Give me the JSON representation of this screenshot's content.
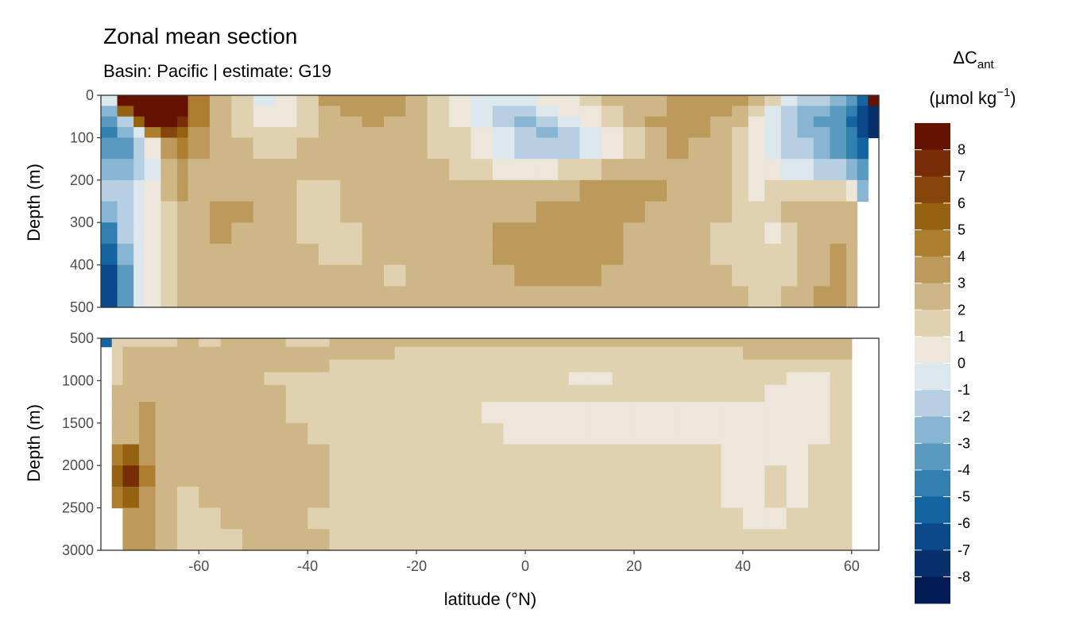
{
  "title": "Zonal mean section",
  "subtitle": "Basin: Pacific | estimate: G19",
  "chart_data": {
    "type": "heatmap",
    "title": "Zonal mean section",
    "subtitle": "Basin: Pacific | estimate: G19",
    "xlabel": "latitude (°N)",
    "ylabel": "Depth (m)",
    "xlim": [
      -78,
      65
    ],
    "x_ticks": [
      -60,
      -40,
      -20,
      0,
      20,
      40,
      60
    ],
    "x_tick_labels": [
      "-60",
      "-40",
      "-20",
      "0",
      "20",
      "40",
      "60"
    ],
    "legend": {
      "title": "ΔC",
      "title_subscript": "ant",
      "unit_prefix": "(µmol kg",
      "unit_superscript": "−1",
      "unit_suffix": ")",
      "placement": "right",
      "levels": [
        8,
        7,
        6,
        5,
        4,
        3,
        2,
        1,
        0,
        -1,
        -2,
        -3,
        -4,
        -5,
        -6,
        -7,
        -8
      ],
      "level_labels": [
        "8",
        "7",
        "6",
        "5",
        "4",
        "3",
        "2",
        "1",
        "0",
        "-1",
        "-2",
        "-3",
        "-4",
        "-5",
        "-6",
        "-7",
        "-8"
      ],
      "colors": [
        "#661200",
        "#772e06",
        "#86450a",
        "#95620f",
        "#ad7e2f",
        "#bc9a5b",
        "#cfb687",
        "#e0d2b1",
        "#ece6db",
        "#dce8ee",
        "#b6d0e1",
        "#88b6d2",
        "#5b9ac0",
        "#3180b0",
        "#1464a2",
        "#0a4889",
        "#062f6c",
        "#031b54"
      ]
    },
    "panels": [
      {
        "name": "upper",
        "ylim": [
          0,
          500
        ],
        "y_ticks": [
          0,
          100,
          200,
          300,
          400,
          500
        ],
        "y_tick_labels": [
          "0",
          "100",
          "200",
          "300",
          "400",
          "500"
        ],
        "lat_breaks": [
          -78,
          -75,
          -72,
          -70,
          -67,
          -64,
          -62,
          -58,
          -54,
          -50,
          -46,
          -42,
          -38,
          -34,
          -30,
          -26,
          -22,
          -18,
          -14,
          -10,
          -6,
          -2,
          2,
          6,
          10,
          14,
          18,
          22,
          26,
          30,
          34,
          38,
          41,
          44,
          47,
          50,
          53,
          56,
          59,
          61,
          63,
          65
        ],
        "depth_breaks": [
          0,
          25,
          50,
          75,
          100,
          150,
          200,
          250,
          300,
          350,
          400,
          450,
          500
        ],
        "values": [
          [
            -1,
            8,
            8,
            8,
            8,
            8,
            4,
            2,
            1,
            -1,
            0,
            1,
            3,
            3,
            3,
            3,
            2,
            1,
            0,
            -1,
            -1,
            -1,
            0,
            0,
            1,
            2,
            2,
            2,
            3,
            3,
            3,
            3,
            2,
            1,
            -1,
            -2,
            -2,
            -3,
            -4,
            -6,
            8
          ],
          [
            -3,
            5,
            8,
            8,
            8,
            8,
            4,
            2,
            1,
            0,
            0,
            1,
            2,
            3,
            3,
            3,
            2,
            1,
            0,
            -1,
            -2,
            -2,
            -1,
            0,
            0,
            1,
            2,
            2,
            3,
            3,
            3,
            2,
            1,
            -1,
            -2,
            -3,
            -3,
            -4,
            -5,
            -7,
            -8
          ],
          [
            -4,
            -2,
            5,
            8,
            8,
            7,
            4,
            2,
            1,
            0,
            0,
            1,
            2,
            2,
            3,
            2,
            2,
            1,
            0,
            -1,
            -2,
            -3,
            -2,
            -1,
            0,
            1,
            2,
            3,
            3,
            3,
            2,
            2,
            0,
            -1,
            -2,
            -3,
            -4,
            -4,
            -6,
            -7,
            -8
          ],
          [
            -5,
            -3,
            -1,
            4,
            6,
            5,
            3,
            2,
            1,
            1,
            1,
            1,
            2,
            2,
            2,
            2,
            2,
            1,
            1,
            0,
            -1,
            -2,
            -3,
            -2,
            -1,
            0,
            1,
            2,
            3,
            3,
            2,
            1,
            0,
            -1,
            -2,
            -3,
            -3,
            -4,
            -5,
            -7,
            -8
          ],
          [
            -4,
            -4,
            -2,
            0,
            3,
            4,
            3,
            2,
            2,
            1,
            1,
            2,
            2,
            2,
            2,
            2,
            2,
            1,
            1,
            0,
            -1,
            -2,
            -2,
            -2,
            -1,
            0,
            1,
            2,
            3,
            2,
            2,
            1,
            0,
            -1,
            -2,
            -2,
            -3,
            -4,
            -5,
            -6,
            null
          ],
          [
            -3,
            -3,
            -2,
            -1,
            2,
            3,
            2,
            2,
            2,
            2,
            2,
            2,
            2,
            2,
            2,
            2,
            2,
            2,
            1,
            1,
            0,
            0,
            0,
            1,
            1,
            2,
            2,
            2,
            2,
            2,
            2,
            1,
            0,
            0,
            -1,
            -1,
            -2,
            -2,
            -3,
            -4,
            null
          ],
          [
            -2,
            -2,
            -1,
            0,
            2,
            3,
            2,
            2,
            2,
            2,
            2,
            1,
            1,
            2,
            2,
            2,
            2,
            2,
            2,
            2,
            2,
            2,
            2,
            2,
            3,
            3,
            3,
            3,
            2,
            2,
            2,
            1,
            0,
            1,
            1,
            1,
            1,
            1,
            0,
            -3,
            null
          ],
          [
            -3,
            -2,
            -1,
            0,
            1,
            2,
            2,
            3,
            3,
            2,
            2,
            1,
            1,
            2,
            2,
            2,
            2,
            2,
            2,
            2,
            2,
            2,
            3,
            3,
            3,
            3,
            3,
            2,
            2,
            2,
            2,
            1,
            1,
            1,
            2,
            2,
            2,
            2,
            2,
            null,
            null
          ],
          [
            -5,
            -2,
            -1,
            0,
            1,
            2,
            2,
            3,
            2,
            2,
            2,
            1,
            1,
            1,
            2,
            2,
            2,
            2,
            2,
            2,
            3,
            3,
            3,
            3,
            3,
            3,
            2,
            2,
            2,
            2,
            1,
            1,
            1,
            0,
            1,
            2,
            2,
            2,
            2,
            null,
            null
          ],
          [
            -6,
            -3,
            -1,
            0,
            1,
            2,
            2,
            2,
            2,
            2,
            2,
            2,
            1,
            1,
            2,
            2,
            2,
            2,
            2,
            2,
            3,
            3,
            3,
            3,
            3,
            3,
            2,
            2,
            2,
            2,
            1,
            1,
            1,
            1,
            1,
            2,
            2,
            3,
            2,
            null,
            null
          ],
          [
            -7,
            -4,
            -1,
            0,
            1,
            2,
            2,
            2,
            2,
            2,
            2,
            2,
            2,
            2,
            2,
            1,
            2,
            2,
            2,
            2,
            2,
            3,
            3,
            3,
            3,
            2,
            2,
            2,
            2,
            2,
            2,
            1,
            1,
            1,
            1,
            2,
            2,
            3,
            2,
            null,
            null
          ],
          [
            -7,
            -4,
            -1,
            0,
            1,
            2,
            2,
            2,
            2,
            2,
            2,
            2,
            2,
            2,
            2,
            2,
            2,
            2,
            2,
            2,
            2,
            2,
            2,
            2,
            2,
            2,
            2,
            2,
            2,
            2,
            2,
            2,
            1,
            1,
            2,
            2,
            3,
            3,
            2,
            null,
            null
          ]
        ]
      },
      {
        "name": "lower",
        "ylim": [
          500,
          3000
        ],
        "y_ticks": [
          500,
          1000,
          1500,
          2000,
          2500,
          3000
        ],
        "y_tick_labels": [
          "500",
          "1000",
          "1500",
          "2000",
          "2500",
          "3000"
        ],
        "lat_breaks": [
          -78,
          -76,
          -74,
          -71,
          -68,
          -64,
          -60,
          -56,
          -52,
          -48,
          -44,
          -40,
          -36,
          -32,
          -28,
          -24,
          -20,
          -16,
          -12,
          -8,
          -4,
          0,
          4,
          8,
          12,
          16,
          20,
          24,
          28,
          32,
          36,
          40,
          44,
          48,
          52,
          56,
          60,
          65
        ],
        "depth_breaks": [
          500,
          600,
          750,
          900,
          1050,
          1250,
          1500,
          1750,
          2000,
          2250,
          2500,
          2750,
          3000
        ],
        "values": [
          [
            -6,
            1,
            1,
            1,
            1,
            2,
            1,
            2,
            2,
            2,
            1,
            1,
            2,
            2,
            2,
            2,
            2,
            2,
            2,
            2,
            2,
            2,
            2,
            2,
            2,
            2,
            2,
            2,
            2,
            2,
            2,
            2,
            2,
            2,
            2,
            2,
            null
          ],
          [
            null,
            1,
            2,
            2,
            2,
            2,
            2,
            2,
            2,
            2,
            2,
            2,
            2,
            2,
            2,
            1,
            1,
            1,
            1,
            1,
            1,
            1,
            1,
            1,
            1,
            1,
            1,
            1,
            1,
            1,
            1,
            2,
            2,
            2,
            2,
            2,
            null
          ],
          [
            null,
            1,
            2,
            2,
            2,
            2,
            2,
            2,
            2,
            2,
            2,
            2,
            1,
            1,
            1,
            1,
            1,
            1,
            1,
            1,
            1,
            1,
            1,
            1,
            1,
            1,
            1,
            1,
            1,
            1,
            1,
            1,
            1,
            1,
            1,
            1,
            null
          ],
          [
            null,
            1,
            2,
            2,
            2,
            2,
            2,
            2,
            2,
            1,
            1,
            1,
            1,
            1,
            1,
            1,
            1,
            1,
            1,
            1,
            1,
            1,
            1,
            0,
            0,
            1,
            1,
            1,
            1,
            1,
            1,
            1,
            1,
            0,
            0,
            1,
            null
          ],
          [
            null,
            2,
            2,
            2,
            2,
            2,
            2,
            2,
            2,
            2,
            1,
            1,
            1,
            1,
            1,
            1,
            1,
            1,
            1,
            1,
            1,
            1,
            1,
            1,
            1,
            1,
            1,
            1,
            1,
            1,
            1,
            1,
            0,
            0,
            0,
            1,
            null
          ],
          [
            null,
            2,
            2,
            3,
            2,
            2,
            2,
            2,
            2,
            2,
            1,
            1,
            1,
            1,
            1,
            1,
            1,
            1,
            1,
            0,
            0,
            0,
            0,
            0,
            0,
            0,
            0,
            0,
            0,
            0,
            0,
            0,
            0,
            0,
            0,
            1,
            null
          ],
          [
            null,
            2,
            2,
            3,
            2,
            2,
            2,
            2,
            2,
            2,
            2,
            1,
            1,
            1,
            1,
            1,
            1,
            1,
            1,
            1,
            0,
            0,
            0,
            0,
            0,
            0,
            0,
            0,
            0,
            0,
            0,
            0,
            0,
            0,
            0,
            1,
            null
          ],
          [
            null,
            4,
            5,
            3,
            2,
            2,
            2,
            2,
            2,
            2,
            2,
            2,
            1,
            1,
            1,
            1,
            1,
            1,
            1,
            1,
            1,
            1,
            1,
            1,
            1,
            1,
            1,
            1,
            1,
            1,
            0,
            0,
            0,
            0,
            1,
            1,
            null
          ],
          [
            null,
            5,
            7,
            4,
            2,
            2,
            2,
            2,
            2,
            2,
            2,
            2,
            1,
            1,
            1,
            1,
            1,
            1,
            1,
            1,
            1,
            1,
            1,
            1,
            1,
            1,
            1,
            1,
            1,
            1,
            0,
            0,
            1,
            0,
            1,
            1,
            null
          ],
          [
            null,
            4,
            5,
            3,
            2,
            1,
            2,
            2,
            2,
            2,
            2,
            2,
            1,
            1,
            1,
            1,
            1,
            1,
            1,
            1,
            1,
            1,
            1,
            1,
            1,
            1,
            1,
            1,
            1,
            1,
            0,
            0,
            1,
            0,
            1,
            1,
            null
          ],
          [
            null,
            null,
            3,
            3,
            2,
            1,
            1,
            2,
            2,
            2,
            2,
            1,
            1,
            1,
            1,
            1,
            1,
            1,
            1,
            1,
            1,
            1,
            1,
            1,
            1,
            1,
            1,
            1,
            1,
            1,
            1,
            0,
            0,
            1,
            1,
            1,
            null
          ],
          [
            null,
            null,
            3,
            3,
            2,
            1,
            1,
            1,
            2,
            2,
            2,
            2,
            1,
            1,
            1,
            1,
            1,
            1,
            1,
            1,
            1,
            1,
            1,
            1,
            1,
            1,
            1,
            1,
            1,
            1,
            1,
            1,
            1,
            1,
            1,
            1,
            null
          ]
        ]
      }
    ]
  }
}
